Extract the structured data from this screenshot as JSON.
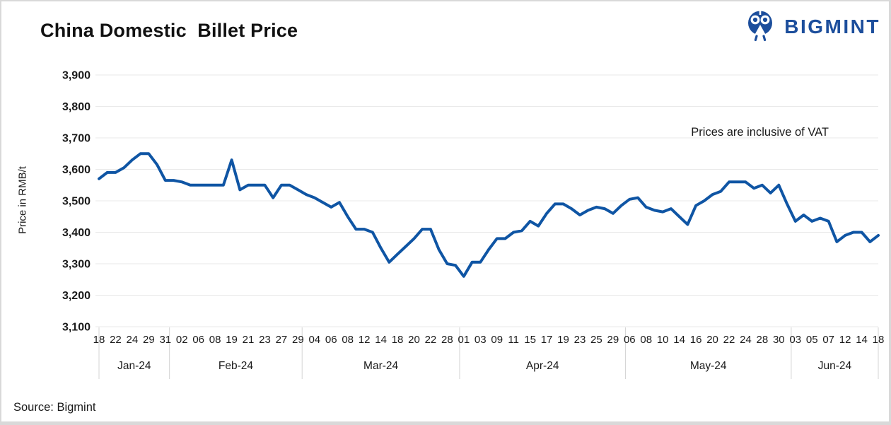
{
  "header": {
    "title": "China Domestic  Billet Price",
    "logo_text": "BIGMINT",
    "logo_color": "#1C4E9C"
  },
  "footer": {
    "source": "Source: Bigmint"
  },
  "chart_data": {
    "type": "line",
    "title": "China Domestic Billet Price",
    "ylabel": "Price in RMB/t",
    "annotation": "Prices are inclusive of VAT",
    "ylim": [
      3100,
      3900
    ],
    "ytick_step": 100,
    "ytick_labels": [
      "3,100",
      "3,200",
      "3,300",
      "3,400",
      "3,500",
      "3,600",
      "3,700",
      "3,800",
      "3,900"
    ],
    "grid": true,
    "legend": "none",
    "line_color": "#0F55A4",
    "label_rule": "day labels mark every other data point",
    "months": [
      {
        "label": "Jan-24",
        "day_labels": [
          "18",
          "22",
          "24",
          "29",
          "31"
        ],
        "values": [
          3570,
          3590,
          3590,
          3605,
          3630,
          3650,
          3650,
          3615,
          3565
        ]
      },
      {
        "label": "Feb-24",
        "day_labels": [
          "02",
          "06",
          "08",
          "19",
          "21",
          "23",
          "27",
          "29"
        ],
        "values": [
          3565,
          3560,
          3550,
          3550,
          3550,
          3550,
          3550,
          3630,
          3535,
          3550,
          3550,
          3550,
          3510,
          3550,
          3550,
          3535
        ]
      },
      {
        "label": "Mar-24",
        "day_labels": [
          "04",
          "06",
          "08",
          "12",
          "14",
          "18",
          "20",
          "22",
          "28"
        ],
        "values": [
          3520,
          3510,
          3495,
          3480,
          3495,
          3450,
          3410,
          3410,
          3400,
          3350,
          3305,
          3330,
          3355,
          3380,
          3410,
          3410,
          3345,
          3300,
          3295
        ]
      },
      {
        "label": "Apr-24",
        "day_labels": [
          "01",
          "03",
          "09",
          "11",
          "15",
          "17",
          "19",
          "23",
          "25",
          "29"
        ],
        "values": [
          3260,
          3305,
          3305,
          3345,
          3380,
          3380,
          3400,
          3405,
          3435,
          3420,
          3460,
          3490,
          3490,
          3475,
          3455,
          3470,
          3480,
          3475,
          3460,
          3485
        ]
      },
      {
        "label": "May-24",
        "day_labels": [
          "06",
          "08",
          "10",
          "14",
          "16",
          "20",
          "22",
          "24",
          "28",
          "30"
        ],
        "values": [
          3505,
          3510,
          3480,
          3470,
          3465,
          3475,
          3450,
          3425,
          3485,
          3500,
          3520,
          3530,
          3560,
          3560,
          3560,
          3540,
          3550,
          3525,
          3550,
          3490
        ]
      },
      {
        "label": "Jun-24",
        "day_labels": [
          "03",
          "05",
          "07",
          "12",
          "14",
          "18"
        ],
        "values": [
          3435,
          3455,
          3435,
          3445,
          3435,
          3370,
          3390,
          3400,
          3400,
          3370,
          3390
        ]
      }
    ]
  }
}
